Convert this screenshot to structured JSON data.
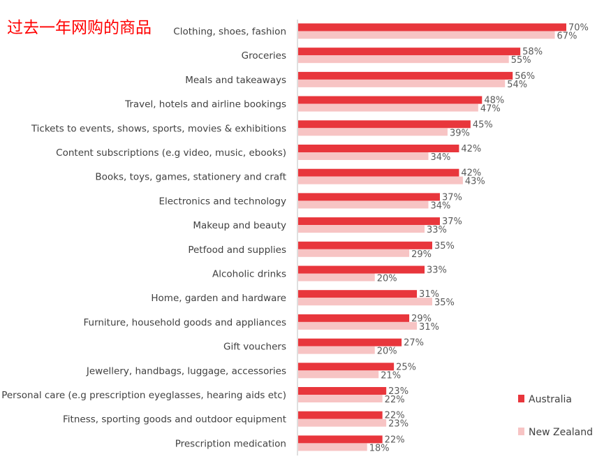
{
  "chart_data": {
    "type": "bar",
    "title": "过去一年网购的商品",
    "orientation": "horizontal",
    "categories": [
      "Clothing, shoes, fashion",
      "Groceries",
      "Meals and takeaways",
      "Travel, hotels and airline bookings",
      "Tickets to events, shows, sports, movies & exhibitions",
      "Content subscriptions (e.g video, music, ebooks)",
      "Books, toys, games, stationery and craft",
      "Electronics and technology",
      "Makeup and beauty",
      "Petfood and supplies",
      "Alcoholic drinks",
      "Home, garden and hardware",
      "Furniture, household goods and appliances",
      "Gift vouchers",
      "Jewellery, handbags, luggage, accessories",
      "Personal care (e.g prescription eyeglasses, hearing aids etc)",
      "Fitness, sporting goods and outdoor equipment",
      "Prescription medication"
    ],
    "series": [
      {
        "name": "Australia",
        "color": "#e8363c",
        "values": [
          70,
          58,
          56,
          48,
          45,
          42,
          42,
          37,
          37,
          35,
          33,
          31,
          29,
          27,
          25,
          23,
          22,
          22
        ],
        "labels": [
          "70%",
          "58%",
          "56%",
          "48%",
          "45%",
          "42%",
          "42%",
          "37%",
          "37%",
          "35%",
          "33%",
          "31%",
          "29%",
          "27%",
          "25%",
          "23%",
          "22%",
          "22%"
        ]
      },
      {
        "name": "New Zealand",
        "color": "#f7c4c4",
        "values": [
          67,
          55,
          54,
          47,
          39,
          34,
          43,
          34,
          33,
          29,
          20,
          35,
          31,
          20,
          21,
          22,
          23,
          18
        ],
        "labels": [
          "67%",
          "55%",
          "54%",
          "47%",
          "39%",
          "34%",
          "43%",
          "34%",
          "33%",
          "29%",
          "20%",
          "35%",
          "31%",
          "20%",
          "21%",
          "22%",
          "23%",
          "18%"
        ]
      }
    ],
    "xlim": [
      0,
      75
    ],
    "grid": false,
    "legend": "bottom-right"
  }
}
